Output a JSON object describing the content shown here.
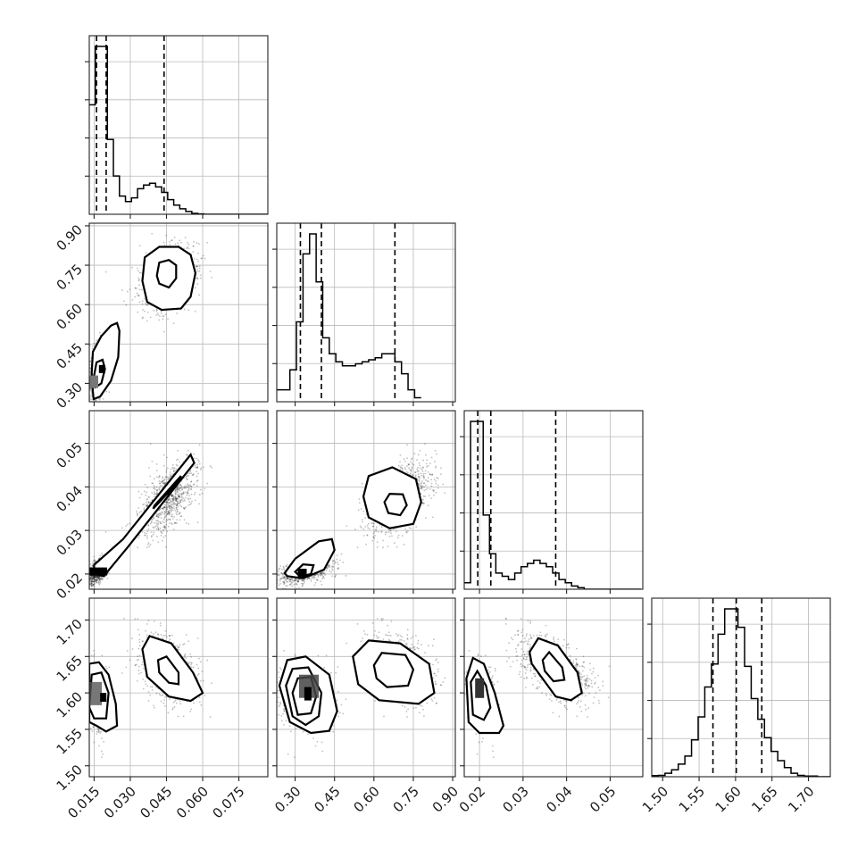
{
  "chart_data": {
    "type": "corner",
    "grid": true,
    "colors": {
      "line": "#000000",
      "points": "#222222",
      "grid": "#b9b9b9"
    },
    "parameters": [
      {
        "range": [
          0.013,
          0.087
        ],
        "ticks": [
          0.015,
          0.03,
          0.045,
          0.06,
          0.075
        ],
        "tick_labels": [
          "0.015",
          "0.030",
          "0.045",
          "0.060",
          "0.075"
        ],
        "quantiles": [
          0.016,
          0.02,
          0.044
        ],
        "histogram": {
          "bin_start": 0.013,
          "bin_width": 0.0025,
          "counts": [
            60,
            92,
            92,
            41,
            21,
            10,
            7,
            9,
            14,
            16,
            17,
            15,
            12,
            8,
            5,
            3,
            1.5,
            0.5,
            0.2,
            0,
            0,
            0,
            0,
            0,
            0,
            0,
            0,
            0,
            0,
            0
          ]
        }
      },
      {
        "range": [
          0.23,
          0.91
        ],
        "ticks": [
          0.3,
          0.45,
          0.6,
          0.75,
          0.9
        ],
        "tick_labels": [
          "0.30",
          "0.45",
          "0.60",
          "0.75",
          "0.90"
        ],
        "quantiles": [
          0.32,
          0.4,
          0.68
        ],
        "histogram": {
          "bin_start": 0.23,
          "bin_width": 0.025,
          "counts": [
            3,
            3,
            8,
            20,
            37,
            42,
            30,
            16,
            12,
            10,
            9,
            9,
            9.5,
            10,
            10.5,
            11,
            12,
            12,
            10,
            7,
            3,
            1
          ]
        }
      },
      {
        "range": [
          0.0165,
          0.0575
        ],
        "ticks": [
          0.02,
          0.03,
          0.04,
          0.05
        ],
        "tick_labels": [
          "0.02",
          "0.03",
          "0.04",
          "0.05"
        ],
        "quantiles": [
          0.0196,
          0.0226,
          0.0375
        ],
        "histogram": {
          "bin_start": 0.0165,
          "bin_width": 0.00145,
          "counts": [
            2,
            52,
            52,
            23,
            11,
            5,
            4,
            3,
            5,
            7,
            8,
            9,
            8,
            7,
            5,
            3,
            2,
            1,
            0.5,
            0,
            0,
            0,
            0,
            0,
            0,
            0,
            0,
            0
          ]
        }
      },
      {
        "range": [
          1.485,
          1.73
        ],
        "ticks": [
          1.5,
          1.55,
          1.6,
          1.65,
          1.7
        ],
        "tick_labels": [
          "1.50",
          "1.55",
          "1.60",
          "1.65",
          "1.70"
        ],
        "quantiles": [
          1.569,
          1.601,
          1.636
        ],
        "histogram": {
          "bin_start": 1.485,
          "bin_width": 0.0091,
          "counts": [
            0.5,
            0.6,
            1.5,
            3,
            5.5,
            9,
            16,
            26,
            39,
            49,
            62,
            73,
            73,
            65,
            48,
            34,
            25,
            17,
            11,
            7,
            4,
            1.5,
            0.6,
            0.3,
            0.3,
            0,
            0
          ]
        }
      }
    ],
    "clusters": [
      {
        "center": [
          0.0162,
          0.335,
          0.0204,
          1.597
        ],
        "sd": [
          0.002,
          0.055,
          0.0015,
          0.022
        ],
        "weight": 0.45
      },
      {
        "center": [
          0.046,
          0.705,
          0.0377,
          1.631
        ],
        "sd": [
          0.006,
          0.06,
          0.0042,
          0.022
        ],
        "weight": 0.55
      }
    ],
    "panels": [
      {
        "row": 1,
        "col": 0,
        "scatter_center": [
          [
            0.016,
            0.33
          ],
          [
            0.046,
            0.705
          ]
        ],
        "contours": [
          {
            "level": "outer",
            "points": [
              [
                0.0145,
                0.27
              ],
              [
                0.014,
                0.34
              ],
              [
                0.0145,
                0.42
              ],
              [
                0.018,
                0.48
              ],
              [
                0.022,
                0.52
              ],
              [
                0.0245,
                0.53
              ],
              [
                0.0255,
                0.5
              ],
              [
                0.025,
                0.4
              ],
              [
                0.022,
                0.31
              ],
              [
                0.0175,
                0.25
              ],
              [
                0.0148,
                0.24
              ]
            ]
          },
          {
            "level": "outer",
            "points": [
              [
                0.035,
                0.69
              ],
              [
                0.036,
                0.78
              ],
              [
                0.042,
                0.82
              ],
              [
                0.05,
                0.82
              ],
              [
                0.055,
                0.79
              ],
              [
                0.057,
                0.72
              ],
              [
                0.055,
                0.63
              ],
              [
                0.051,
                0.585
              ],
              [
                0.043,
                0.58
              ],
              [
                0.037,
                0.61
              ]
            ]
          },
          {
            "level": "inner",
            "points": [
              [
                0.0148,
                0.32
              ],
              [
                0.016,
                0.38
              ],
              [
                0.0185,
                0.39
              ],
              [
                0.0195,
                0.355
              ],
              [
                0.018,
                0.3
              ],
              [
                0.0155,
                0.285
              ]
            ]
          },
          {
            "level": "inner",
            "points": [
              [
                0.041,
                0.71
              ],
              [
                0.042,
                0.76
              ],
              [
                0.046,
                0.77
              ],
              [
                0.049,
                0.75
              ],
              [
                0.049,
                0.7
              ],
              [
                0.046,
                0.665
              ],
              [
                0.042,
                0.68
              ]
            ]
          }
        ]
      },
      {
        "row": 2,
        "col": 0,
        "contours": [
          {
            "level": "outer",
            "points": [
              [
                0.015,
                0.0201
              ],
              [
                0.015,
                0.0221
              ],
              [
                0.027,
                0.028
              ],
              [
                0.055,
                0.0474
              ],
              [
                0.0565,
                0.0455
              ],
              [
                0.029,
                0.0262
              ],
              [
                0.019,
                0.0195
              ]
            ]
          },
          {
            "level": "inner",
            "points": [
              [
                0.04,
                0.0357
              ],
              [
                0.051,
                0.0425
              ],
              [
                0.0505,
                0.0415
              ],
              [
                0.0395,
                0.035
              ]
            ]
          }
        ]
      },
      {
        "row": 2,
        "col": 1,
        "contours": [
          {
            "level": "outer",
            "points": [
              [
                0.27,
                0.0195
              ],
              [
                0.26,
                0.0202
              ],
              [
                0.3,
                0.0235
              ],
              [
                0.39,
                0.0275
              ],
              [
                0.44,
                0.028
              ],
              [
                0.45,
                0.0255
              ],
              [
                0.41,
                0.021
              ],
              [
                0.33,
                0.019
              ]
            ]
          },
          {
            "level": "outer",
            "points": [
              [
                0.56,
                0.0378
              ],
              [
                0.58,
                0.0425
              ],
              [
                0.67,
                0.0445
              ],
              [
                0.76,
                0.0418
              ],
              [
                0.78,
                0.0365
              ],
              [
                0.75,
                0.0315
              ],
              [
                0.66,
                0.0305
              ],
              [
                0.58,
                0.033
              ]
            ]
          },
          {
            "level": "inner",
            "points": [
              [
                0.64,
                0.0365
              ],
              [
                0.66,
                0.0384
              ],
              [
                0.71,
                0.0383
              ],
              [
                0.725,
                0.0358
              ],
              [
                0.7,
                0.0335
              ],
              [
                0.655,
                0.034
              ]
            ]
          },
          {
            "level": "inner",
            "points": [
              [
                0.3,
                0.0205
              ],
              [
                0.33,
                0.0222
              ],
              [
                0.37,
                0.022
              ],
              [
                0.36,
                0.02
              ],
              [
                0.32,
                0.0194
              ]
            ]
          }
        ]
      },
      {
        "row": 3,
        "col": 0,
        "contours": [
          {
            "level": "outer",
            "points": [
              [
                0.013,
                1.64
              ],
              [
                0.017,
                1.642
              ],
              [
                0.021,
                1.625
              ],
              [
                0.024,
                1.585
              ],
              [
                0.0245,
                1.555
              ],
              [
                0.02,
                1.547
              ],
              [
                0.016,
                1.555
              ],
              [
                0.013,
                1.56
              ]
            ]
          },
          {
            "level": "outer",
            "points": [
              [
                0.035,
                1.66
              ],
              [
                0.038,
                1.678
              ],
              [
                0.047,
                1.668
              ],
              [
                0.056,
                1.628
              ],
              [
                0.06,
                1.6
              ],
              [
                0.055,
                1.589
              ],
              [
                0.046,
                1.595
              ],
              [
                0.037,
                1.622
              ]
            ]
          },
          {
            "level": "inner",
            "points": [
              [
                0.014,
                1.625
              ],
              [
                0.018,
                1.628
              ],
              [
                0.021,
                1.6
              ],
              [
                0.02,
                1.565
              ],
              [
                0.015,
                1.565
              ],
              [
                0.013,
                1.58
              ]
            ]
          },
          {
            "level": "inner",
            "points": [
              [
                0.0415,
                1.645
              ],
              [
                0.045,
                1.65
              ],
              [
                0.05,
                1.628
              ],
              [
                0.05,
                1.612
              ],
              [
                0.046,
                1.614
              ],
              [
                0.042,
                1.628
              ]
            ]
          }
        ]
      },
      {
        "row": 3,
        "col": 1,
        "contours": [
          {
            "level": "outer",
            "points": [
              [
                0.24,
                1.61
              ],
              [
                0.27,
                1.645
              ],
              [
                0.34,
                1.65
              ],
              [
                0.43,
                1.625
              ],
              [
                0.46,
                1.575
              ],
              [
                0.43,
                1.548
              ],
              [
                0.36,
                1.545
              ],
              [
                0.28,
                1.56
              ]
            ]
          },
          {
            "level": "outer",
            "points": [
              [
                0.52,
                1.65
              ],
              [
                0.58,
                1.672
              ],
              [
                0.7,
                1.668
              ],
              [
                0.81,
                1.64
              ],
              [
                0.83,
                1.6
              ],
              [
                0.77,
                1.585
              ],
              [
                0.62,
                1.59
              ],
              [
                0.54,
                1.612
              ]
            ]
          },
          {
            "level": "inner",
            "points": [
              [
                0.265,
                1.61
              ],
              [
                0.29,
                1.633
              ],
              [
                0.35,
                1.635
              ],
              [
                0.4,
                1.6
              ],
              [
                0.39,
                1.568
              ],
              [
                0.34,
                1.556
              ],
              [
                0.29,
                1.568
              ]
            ]
          },
          {
            "level": "inner",
            "points": [
              [
                0.29,
                1.6
              ],
              [
                0.31,
                1.62
              ],
              [
                0.36,
                1.622
              ],
              [
                0.38,
                1.595
              ],
              [
                0.36,
                1.572
              ],
              [
                0.31,
                1.57
              ]
            ]
          },
          {
            "level": "inner",
            "points": [
              [
                0.6,
                1.638
              ],
              [
                0.63,
                1.655
              ],
              [
                0.72,
                1.652
              ],
              [
                0.75,
                1.632
              ],
              [
                0.73,
                1.61
              ],
              [
                0.65,
                1.608
              ],
              [
                0.61,
                1.62
              ]
            ]
          }
        ]
      },
      {
        "row": 3,
        "col": 2,
        "contours": [
          {
            "level": "outer",
            "points": [
              [
                0.017,
                1.62
              ],
              [
                0.0185,
                1.648
              ],
              [
                0.021,
                1.64
              ],
              [
                0.0235,
                1.6
              ],
              [
                0.0255,
                1.555
              ],
              [
                0.0245,
                1.545
              ],
              [
                0.02,
                1.545
              ],
              [
                0.0175,
                1.56
              ]
            ]
          },
          {
            "level": "outer",
            "points": [
              [
                0.0315,
                1.656
              ],
              [
                0.0335,
                1.675
              ],
              [
                0.038,
                1.665
              ],
              [
                0.0425,
                1.628
              ],
              [
                0.0435,
                1.6
              ],
              [
                0.041,
                1.59
              ],
              [
                0.0375,
                1.595
              ],
              [
                0.032,
                1.64
              ]
            ]
          },
          {
            "level": "inner",
            "points": [
              [
                0.018,
                1.615
              ],
              [
                0.0195,
                1.63
              ],
              [
                0.0215,
                1.61
              ],
              [
                0.0225,
                1.58
              ],
              [
                0.021,
                1.563
              ],
              [
                0.0185,
                1.57
              ]
            ]
          },
          {
            "level": "inner",
            "points": [
              [
                0.0345,
                1.645
              ],
              [
                0.036,
                1.656
              ],
              [
                0.039,
                1.635
              ],
              [
                0.0395,
                1.618
              ],
              [
                0.037,
                1.616
              ],
              [
                0.035,
                1.63
              ]
            ]
          }
        ]
      }
    ]
  }
}
